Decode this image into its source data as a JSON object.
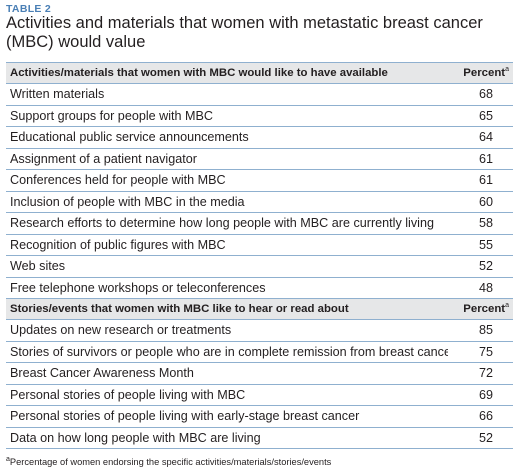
{
  "table_label": "TABLE 2",
  "title": "Activities and materials that women with metastatic breast cancer (MBC) would value",
  "sections": [
    {
      "header": "Activities/materials that women with MBC would like to have available",
      "percent_header": "Percent",
      "percent_marker": "a",
      "rows": [
        {
          "item": "Written materials",
          "percent": "68"
        },
        {
          "item": "Support groups for people with MBC",
          "percent": "65"
        },
        {
          "item": "Educational public service announcements",
          "percent": "64"
        },
        {
          "item": "Assignment of a patient navigator",
          "percent": "61"
        },
        {
          "item": "Conferences held for people with MBC",
          "percent": "61"
        },
        {
          "item": "Inclusion of people with MBC in the media",
          "percent": "60"
        },
        {
          "item": "Research efforts to determine how long people with MBC are currently living",
          "percent": "58"
        },
        {
          "item": "Recognition of public figures with MBC",
          "percent": "55"
        },
        {
          "item": "Web sites",
          "percent": "52"
        },
        {
          "item": "Free telephone workshops or teleconferences",
          "percent": "48"
        }
      ]
    },
    {
      "header": "Stories/events that women with MBC like to hear or read about",
      "percent_header": "Percent",
      "percent_marker": "a",
      "rows": [
        {
          "item": "Updates on new research or treatments",
          "percent": "85"
        },
        {
          "item": "Stories of survivors or people who are in complete remission from breast cancer",
          "percent": "75"
        },
        {
          "item": "Breast Cancer Awareness Month",
          "percent": "72"
        },
        {
          "item": "Personal stories of people living with MBC",
          "percent": "69"
        },
        {
          "item": "Personal stories of people living with early-stage breast cancer",
          "percent": "66"
        },
        {
          "item": "Data on how long people with MBC are living",
          "percent": "52"
        }
      ]
    }
  ],
  "footnote_marker": "a",
  "footnote": "Percentage of women endorsing the specific activities/materials/stories/events"
}
